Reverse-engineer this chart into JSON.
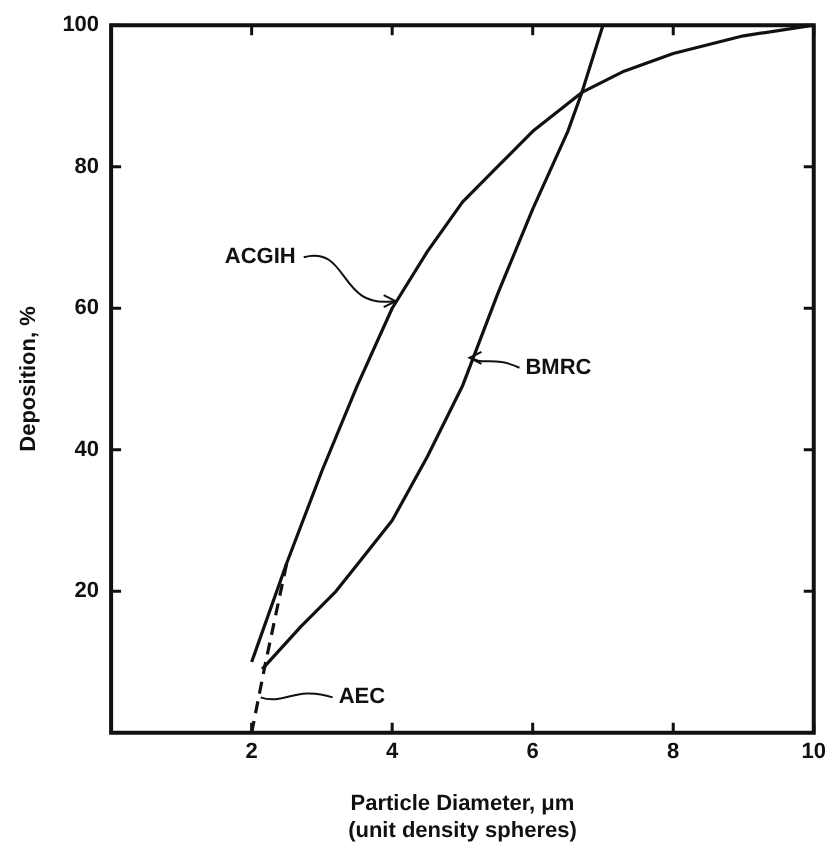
{
  "chart_data": {
    "type": "line",
    "xlabel": "Particle Diameter, μm\n(unit density spheres)",
    "ylabel": "Deposition, %",
    "xlim": [
      0,
      10
    ],
    "ylim": [
      0,
      100
    ],
    "xticks": [
      2,
      4,
      6,
      8,
      10
    ],
    "yticks": [
      20,
      40,
      60,
      80,
      100
    ],
    "grid": false,
    "legend": false,
    "marker": "none",
    "series": [
      {
        "color": "#111111",
        "x": [
          2,
          2.5,
          3,
          3.5,
          4,
          4.5,
          5,
          5.5,
          6,
          6.7,
          7.3,
          8,
          9,
          10
        ],
        "values": [
          10,
          24,
          37,
          49,
          60,
          68,
          75,
          80,
          85,
          90.5,
          93.5,
          96,
          98.5,
          100
        ]
      },
      {
        "color": "#111111",
        "x": [
          2.15,
          2.7,
          3.2,
          3.6,
          4,
          4.5,
          5,
          5.5,
          6,
          6.5,
          6.7,
          7
        ],
        "values": [
          9,
          15,
          20,
          25,
          30,
          39,
          49,
          62,
          74,
          85,
          90.5,
          100
        ]
      },
      {
        "color": "#111111",
        "line_style": "dashed",
        "x": [
          2,
          2.2,
          2.5
        ],
        "values": [
          0,
          10,
          24
        ]
      }
    ],
    "annotations": [
      {
        "text": "ACGIH",
        "x": 4.05,
        "y": 61
      },
      {
        "text": "BMRC",
        "x": 5.1,
        "y": 53
      },
      "AEC"
    ]
  }
}
